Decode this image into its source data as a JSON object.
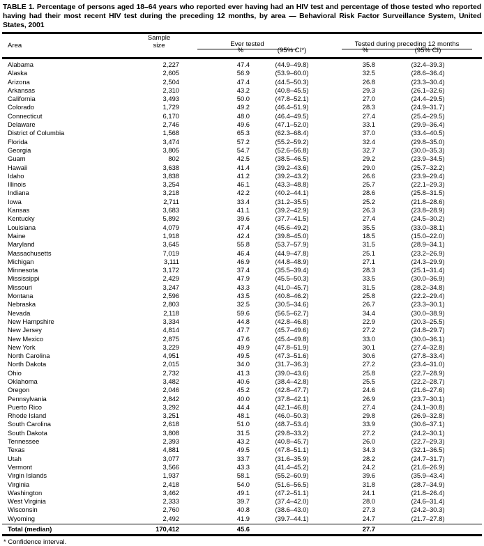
{
  "title": "TABLE 1. Percentage of persons aged 18–64 years who reported ever having had an HIV test and percentage of those tested who reported having had their most recent HIV test during the preceding 12 months, by area — Behavioral Risk Factor Surveillance System, United States, 2001",
  "header": {
    "area": "Area",
    "sample_line1": "Sample",
    "sample_line2": "size",
    "group_ever": "Ever tested",
    "group_recent": "Tested during preceding 12 months",
    "pct": "%",
    "ci_star": "(95% CI*)",
    "ci": "(95% CI)"
  },
  "rows": [
    {
      "area": "Alabama",
      "sample": "2,227",
      "ever_pct": "47.4",
      "ever_ci": "(44.9–49.8)",
      "recent_pct": "35.8",
      "recent_ci": "(32.4–39.3)"
    },
    {
      "area": "Alaska",
      "sample": "2,605",
      "ever_pct": "56.9",
      "ever_ci": "(53.9–60.0)",
      "recent_pct": "32.5",
      "recent_ci": "(28.6–36.4)"
    },
    {
      "area": "Arizona",
      "sample": "2,504",
      "ever_pct": "47.4",
      "ever_ci": "(44.5–50.3)",
      "recent_pct": "26.8",
      "recent_ci": "(23.3–30.4)"
    },
    {
      "area": "Arkansas",
      "sample": "2,310",
      "ever_pct": "43.2",
      "ever_ci": "(40.8–45.5)",
      "recent_pct": "29.3",
      "recent_ci": "(26.1–32.6)"
    },
    {
      "area": "California",
      "sample": "3,493",
      "ever_pct": "50.0",
      "ever_ci": "(47.8–52.1)",
      "recent_pct": "27.0",
      "recent_ci": "(24.4–29.5)"
    },
    {
      "area": "Colorado",
      "sample": "1,729",
      "ever_pct": "49.2",
      "ever_ci": "(46.4–51.9)",
      "recent_pct": "28.3",
      "recent_ci": "(24.9–31.7)"
    },
    {
      "area": "Connecticut",
      "sample": "6,170",
      "ever_pct": "48.0",
      "ever_ci": "(46.4–49.5)",
      "recent_pct": "27.4",
      "recent_ci": "(25.4–29.5)"
    },
    {
      "area": "Delaware",
      "sample": "2,746",
      "ever_pct": "49.6",
      "ever_ci": "(47.1–52.0)",
      "recent_pct": "33.1",
      "recent_ci": "(29.9–36.4)"
    },
    {
      "area": "District of Columbia",
      "sample": "1,568",
      "ever_pct": "65.3",
      "ever_ci": "(62.3–68.4)",
      "recent_pct": "37.0",
      "recent_ci": "(33.4–40.5)"
    },
    {
      "area": "Florida",
      "sample": "3,474",
      "ever_pct": "57.2",
      "ever_ci": "(55.2–59.2)",
      "recent_pct": "32.4",
      "recent_ci": "(29.8–35.0)"
    },
    {
      "area": "Georgia",
      "sample": "3,805",
      "ever_pct": "54.7",
      "ever_ci": "(52.6–56.8)",
      "recent_pct": "32.7",
      "recent_ci": "(30.0–35.3)"
    },
    {
      "area": "Guam",
      "sample": "802",
      "ever_pct": "42.5",
      "ever_ci": "(38.5–46.5)",
      "recent_pct": "29.2",
      "recent_ci": "(23.9–34.5)"
    },
    {
      "area": "Hawaii",
      "sample": "3,638",
      "ever_pct": "41.4",
      "ever_ci": "(39.2–43.6)",
      "recent_pct": "29.0",
      "recent_ci": "(25.7–32.2)"
    },
    {
      "area": "Idaho",
      "sample": "3,838",
      "ever_pct": "41.2",
      "ever_ci": "(39.2–43.2)",
      "recent_pct": "26.6",
      "recent_ci": "(23.9–29.4)"
    },
    {
      "area": "Illinois",
      "sample": "3,254",
      "ever_pct": "46.1",
      "ever_ci": "(43.3–48.8)",
      "recent_pct": "25.7",
      "recent_ci": "(22.1–29.3)"
    },
    {
      "area": "Indiana",
      "sample": "3,218",
      "ever_pct": "42.2",
      "ever_ci": "(40.2–44.1)",
      "recent_pct": "28.6",
      "recent_ci": "(25.8–31.5)"
    },
    {
      "area": "Iowa",
      "sample": "2,711",
      "ever_pct": "33.4",
      "ever_ci": "(31.2–35.5)",
      "recent_pct": "25.2",
      "recent_ci": "(21.8–28.6)"
    },
    {
      "area": "Kansas",
      "sample": "3,683",
      "ever_pct": "41.1",
      "ever_ci": "(39.2–42.9)",
      "recent_pct": "26.3",
      "recent_ci": "(23.8–28.9)"
    },
    {
      "area": "Kentucky",
      "sample": "5,892",
      "ever_pct": "39.6",
      "ever_ci": "(37.7–41.5)",
      "recent_pct": "27.4",
      "recent_ci": "(24.5–30.2)"
    },
    {
      "area": "Louisiana",
      "sample": "4,079",
      "ever_pct": "47.4",
      "ever_ci": "(45.6–49.2)",
      "recent_pct": "35.5",
      "recent_ci": "(33.0–38.1)"
    },
    {
      "area": "Maine",
      "sample": "1,918",
      "ever_pct": "42.4",
      "ever_ci": "(39.8–45.0)",
      "recent_pct": "18.5",
      "recent_ci": "(15.0–22.0)"
    },
    {
      "area": "Maryland",
      "sample": "3,645",
      "ever_pct": "55.8",
      "ever_ci": "(53.7–57.9)",
      "recent_pct": "31.5",
      "recent_ci": "(28.9–34.1)"
    },
    {
      "area": "Massachusetts",
      "sample": "7,019",
      "ever_pct": "46.4",
      "ever_ci": "(44.9–47.8)",
      "recent_pct": "25.1",
      "recent_ci": "(23.2–26.9)"
    },
    {
      "area": "Michigan",
      "sample": "3,111",
      "ever_pct": "46.9",
      "ever_ci": "(44.8–48.9)",
      "recent_pct": "27.1",
      "recent_ci": "(24.3–29.9)"
    },
    {
      "area": "Minnesota",
      "sample": "3,172",
      "ever_pct": "37.4",
      "ever_ci": "(35.5–39.4)",
      "recent_pct": "28.3",
      "recent_ci": "(25.1–31.4)"
    },
    {
      "area": "Mississippi",
      "sample": "2,429",
      "ever_pct": "47.9",
      "ever_ci": "(45.5–50.3)",
      "recent_pct": "33.5",
      "recent_ci": "(30.0–36.9)"
    },
    {
      "area": "Missouri",
      "sample": "3,247",
      "ever_pct": "43.3",
      "ever_ci": "(41.0–45.7)",
      "recent_pct": "31.5",
      "recent_ci": "(28.2–34.8)"
    },
    {
      "area": "Montana",
      "sample": "2,596",
      "ever_pct": "43.5",
      "ever_ci": "(40.8–46.2)",
      "recent_pct": "25.8",
      "recent_ci": "(22.2–29.4)"
    },
    {
      "area": "Nebraska",
      "sample": "2,803",
      "ever_pct": "32.5",
      "ever_ci": "(30.5–34.6)",
      "recent_pct": "26.7",
      "recent_ci": "(23.3–30.1)"
    },
    {
      "area": "Nevada",
      "sample": "2,118",
      "ever_pct": "59.6",
      "ever_ci": "(56.5–62.7)",
      "recent_pct": "34.4",
      "recent_ci": "(30.0–38.9)"
    },
    {
      "area": "New Hampshire",
      "sample": "3,334",
      "ever_pct": "44.8",
      "ever_ci": "(42.8–46.8)",
      "recent_pct": "22.9",
      "recent_ci": "(20.3–25.5)"
    },
    {
      "area": "New Jersey",
      "sample": "4,814",
      "ever_pct": "47.7",
      "ever_ci": "(45.7–49.6)",
      "recent_pct": "27.2",
      "recent_ci": "(24.8–29.7)"
    },
    {
      "area": "New Mexico",
      "sample": "2,875",
      "ever_pct": "47.6",
      "ever_ci": "(45.4–49.8)",
      "recent_pct": "33.0",
      "recent_ci": "(30.0–36.1)"
    },
    {
      "area": "New York",
      "sample": "3,229",
      "ever_pct": "49.9",
      "ever_ci": "(47.8–51.9)",
      "recent_pct": "30.1",
      "recent_ci": "(27.4–32.8)"
    },
    {
      "area": "North Carolina",
      "sample": "4,951",
      "ever_pct": "49.5",
      "ever_ci": "(47.3–51.6)",
      "recent_pct": "30.6",
      "recent_ci": "(27.8–33.4)"
    },
    {
      "area": "North Dakota",
      "sample": "2,015",
      "ever_pct": "34.0",
      "ever_ci": "(31.7–36.3)",
      "recent_pct": "27.2",
      "recent_ci": "(23.4–31.0)"
    },
    {
      "area": "Ohio",
      "sample": "2,732",
      "ever_pct": "41.3",
      "ever_ci": "(39.0–43.6)",
      "recent_pct": "25.8",
      "recent_ci": "(22.7–28.9)"
    },
    {
      "area": "Oklahoma",
      "sample": "3,482",
      "ever_pct": "40.6",
      "ever_ci": "(38.4–42.8)",
      "recent_pct": "25.5",
      "recent_ci": "(22.2–28.7)"
    },
    {
      "area": "Oregon",
      "sample": "2,046",
      "ever_pct": "45.2",
      "ever_ci": "(42.8–47.7)",
      "recent_pct": "24.6",
      "recent_ci": "(21.6–27.6)"
    },
    {
      "area": "Pennsylvania",
      "sample": "2,842",
      "ever_pct": "40.0",
      "ever_ci": "(37.8–42.1)",
      "recent_pct": "26.9",
      "recent_ci": "(23.7–30.1)"
    },
    {
      "area": "Puerto Rico",
      "sample": "3,292",
      "ever_pct": "44.4",
      "ever_ci": "(42.1–46.8)",
      "recent_pct": "27.4",
      "recent_ci": "(24.1–30.8)"
    },
    {
      "area": "Rhode Island",
      "sample": "3,251",
      "ever_pct": "48.1",
      "ever_ci": "(46.0–50.3)",
      "recent_pct": "29.8",
      "recent_ci": "(26.9–32.8)"
    },
    {
      "area": "South Carolina",
      "sample": "2,618",
      "ever_pct": "51.0",
      "ever_ci": "(48.7–53.4)",
      "recent_pct": "33.9",
      "recent_ci": "(30.6–37.1)"
    },
    {
      "area": "South Dakota",
      "sample": "3,808",
      "ever_pct": "31.5",
      "ever_ci": "(29.8–33.2)",
      "recent_pct": "27.2",
      "recent_ci": "(24.2–30.1)"
    },
    {
      "area": "Tennessee",
      "sample": "2,393",
      "ever_pct": "43.2",
      "ever_ci": "(40.8–45.7)",
      "recent_pct": "26.0",
      "recent_ci": "(22.7–29.3)"
    },
    {
      "area": "Texas",
      "sample": "4,881",
      "ever_pct": "49.5",
      "ever_ci": "(47.8–51.1)",
      "recent_pct": "34.3",
      "recent_ci": "(32.1–36.5)"
    },
    {
      "area": "Utah",
      "sample": "3,077",
      "ever_pct": "33.7",
      "ever_ci": "(31.6–35.9)",
      "recent_pct": "28.2",
      "recent_ci": "(24.7–31.7)"
    },
    {
      "area": "Vermont",
      "sample": "3,566",
      "ever_pct": "43.3",
      "ever_ci": "(41.4–45.2)",
      "recent_pct": "24.2",
      "recent_ci": "(21.6–26.9)"
    },
    {
      "area": "Virgin Islands",
      "sample": "1,937",
      "ever_pct": "58.1",
      "ever_ci": "(55.2–60.9)",
      "recent_pct": "39.6",
      "recent_ci": "(35.9–43.4)"
    },
    {
      "area": "Virginia",
      "sample": "2,418",
      "ever_pct": "54.0",
      "ever_ci": "(51.6–56.5)",
      "recent_pct": "31.8",
      "recent_ci": "(28.7–34.9)"
    },
    {
      "area": "Washington",
      "sample": "3,462",
      "ever_pct": "49.1",
      "ever_ci": "(47.2–51.1)",
      "recent_pct": "24.1",
      "recent_ci": "(21.8–26.4)"
    },
    {
      "area": "West Virginia",
      "sample": "2,333",
      "ever_pct": "39.7",
      "ever_ci": "(37.4–42.0)",
      "recent_pct": "28.0",
      "recent_ci": "(24.6–31.4)"
    },
    {
      "area": "Wisconsin",
      "sample": "2,760",
      "ever_pct": "40.8",
      "ever_ci": "(38.6–43.0)",
      "recent_pct": "27.3",
      "recent_ci": "(24.2–30.3)"
    },
    {
      "area": "Wyoming",
      "sample": "2,492",
      "ever_pct": "41.9",
      "ever_ci": "(39.7–44.1)",
      "recent_pct": "24.7",
      "recent_ci": "(21.7–27.8)"
    }
  ],
  "total": {
    "area": "Total (median)",
    "sample": "170,412",
    "ever_pct": "45.6",
    "ever_ci": "",
    "recent_pct": "27.7",
    "recent_ci": ""
  },
  "footnote": "* Confidence interval.",
  "colors": {
    "text": "#000000",
    "background": "#ffffff"
  }
}
